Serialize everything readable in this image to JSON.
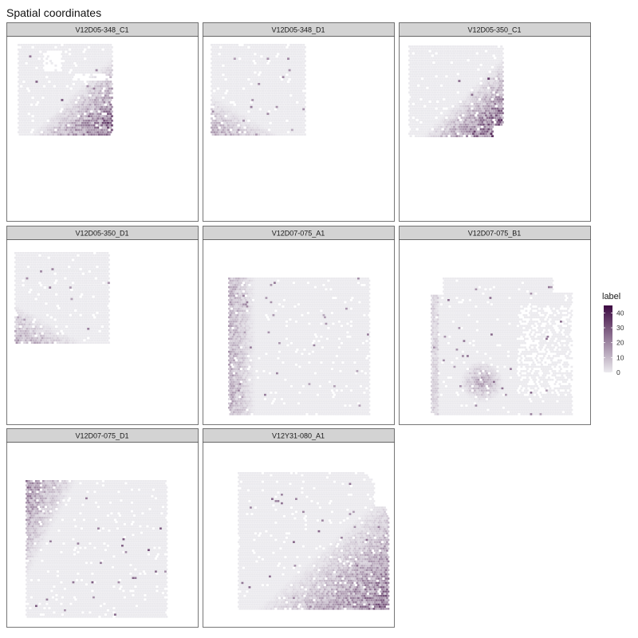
{
  "title": "Spatial coordinates",
  "colors": {
    "low": "#ebeaee",
    "high": "#3d0a42",
    "strip_fill": "#d3d3d3",
    "panel_border": "#555555"
  },
  "chart_data": {
    "type": "heatmap",
    "title": "Spatial coordinates",
    "xlabel": "",
    "ylabel": "",
    "facets": [
      {
        "label": "V12D05-348_C1",
        "shape": "square-small",
        "hotspot": "bottom-right",
        "max_value": 35
      },
      {
        "label": "V12D05-348_D1",
        "shape": "square-small",
        "hotspot": "bottom-left",
        "max_value": 25
      },
      {
        "label": "V12D05-350_C1",
        "shape": "square-small",
        "hotspot": "bottom-right",
        "max_value": 40
      },
      {
        "label": "V12D05-350_D1",
        "shape": "square-small",
        "hotspot": "bottom-left",
        "max_value": 25
      },
      {
        "label": "V12D07-075_A1",
        "shape": "square-large",
        "hotspot": "left",
        "max_value": 25
      },
      {
        "label": "V12D07-075_B1",
        "shape": "square-large",
        "hotspot": "bottom-center",
        "max_value": 30
      },
      {
        "label": "V12D07-075_D1",
        "shape": "square-large",
        "hotspot": "top-left",
        "max_value": 35
      },
      {
        "label": "V12Y31-080_A1",
        "shape": "rounded-right",
        "hotspot": "bottom-right",
        "max_value": 30
      }
    ],
    "legend": {
      "title": "label",
      "ticks": [
        0,
        10,
        20,
        30,
        40
      ],
      "range": [
        0,
        45
      ],
      "position": "right"
    }
  }
}
